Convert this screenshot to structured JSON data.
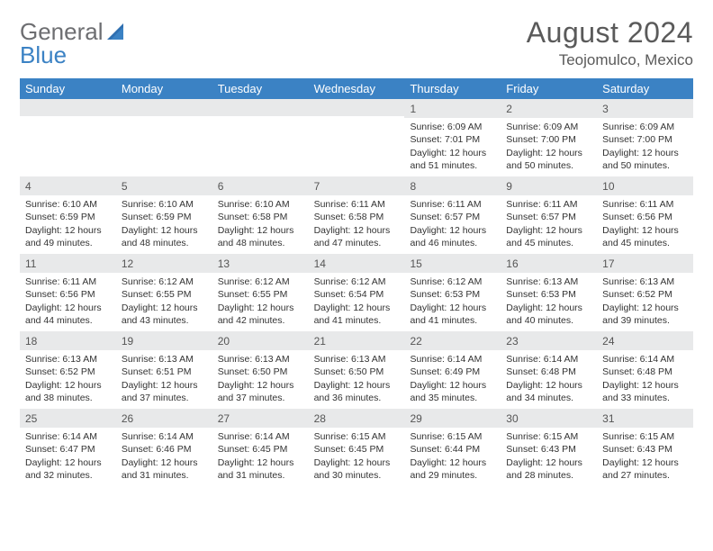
{
  "logo": {
    "line1": "General",
    "line2": "Blue"
  },
  "title": "August 2024",
  "location": "Teojomulco, Mexico",
  "colors": {
    "header_bg": "#3b82c4",
    "header_text": "#ffffff",
    "daynum_bg": "#e8e9ea",
    "body_text": "#333333",
    "title_text": "#5a5a5a",
    "logo_gray": "#6d6e71",
    "logo_blue": "#3b82c4"
  },
  "day_names": [
    "Sunday",
    "Monday",
    "Tuesday",
    "Wednesday",
    "Thursday",
    "Friday",
    "Saturday"
  ],
  "weeks": [
    [
      {
        "n": "",
        "sr": "",
        "ss": "",
        "dl": ""
      },
      {
        "n": "",
        "sr": "",
        "ss": "",
        "dl": ""
      },
      {
        "n": "",
        "sr": "",
        "ss": "",
        "dl": ""
      },
      {
        "n": "",
        "sr": "",
        "ss": "",
        "dl": ""
      },
      {
        "n": "1",
        "sr": "Sunrise: 6:09 AM",
        "ss": "Sunset: 7:01 PM",
        "dl": "Daylight: 12 hours and 51 minutes."
      },
      {
        "n": "2",
        "sr": "Sunrise: 6:09 AM",
        "ss": "Sunset: 7:00 PM",
        "dl": "Daylight: 12 hours and 50 minutes."
      },
      {
        "n": "3",
        "sr": "Sunrise: 6:09 AM",
        "ss": "Sunset: 7:00 PM",
        "dl": "Daylight: 12 hours and 50 minutes."
      }
    ],
    [
      {
        "n": "4",
        "sr": "Sunrise: 6:10 AM",
        "ss": "Sunset: 6:59 PM",
        "dl": "Daylight: 12 hours and 49 minutes."
      },
      {
        "n": "5",
        "sr": "Sunrise: 6:10 AM",
        "ss": "Sunset: 6:59 PM",
        "dl": "Daylight: 12 hours and 48 minutes."
      },
      {
        "n": "6",
        "sr": "Sunrise: 6:10 AM",
        "ss": "Sunset: 6:58 PM",
        "dl": "Daylight: 12 hours and 48 minutes."
      },
      {
        "n": "7",
        "sr": "Sunrise: 6:11 AM",
        "ss": "Sunset: 6:58 PM",
        "dl": "Daylight: 12 hours and 47 minutes."
      },
      {
        "n": "8",
        "sr": "Sunrise: 6:11 AM",
        "ss": "Sunset: 6:57 PM",
        "dl": "Daylight: 12 hours and 46 minutes."
      },
      {
        "n": "9",
        "sr": "Sunrise: 6:11 AM",
        "ss": "Sunset: 6:57 PM",
        "dl": "Daylight: 12 hours and 45 minutes."
      },
      {
        "n": "10",
        "sr": "Sunrise: 6:11 AM",
        "ss": "Sunset: 6:56 PM",
        "dl": "Daylight: 12 hours and 45 minutes."
      }
    ],
    [
      {
        "n": "11",
        "sr": "Sunrise: 6:11 AM",
        "ss": "Sunset: 6:56 PM",
        "dl": "Daylight: 12 hours and 44 minutes."
      },
      {
        "n": "12",
        "sr": "Sunrise: 6:12 AM",
        "ss": "Sunset: 6:55 PM",
        "dl": "Daylight: 12 hours and 43 minutes."
      },
      {
        "n": "13",
        "sr": "Sunrise: 6:12 AM",
        "ss": "Sunset: 6:55 PM",
        "dl": "Daylight: 12 hours and 42 minutes."
      },
      {
        "n": "14",
        "sr": "Sunrise: 6:12 AM",
        "ss": "Sunset: 6:54 PM",
        "dl": "Daylight: 12 hours and 41 minutes."
      },
      {
        "n": "15",
        "sr": "Sunrise: 6:12 AM",
        "ss": "Sunset: 6:53 PM",
        "dl": "Daylight: 12 hours and 41 minutes."
      },
      {
        "n": "16",
        "sr": "Sunrise: 6:13 AM",
        "ss": "Sunset: 6:53 PM",
        "dl": "Daylight: 12 hours and 40 minutes."
      },
      {
        "n": "17",
        "sr": "Sunrise: 6:13 AM",
        "ss": "Sunset: 6:52 PM",
        "dl": "Daylight: 12 hours and 39 minutes."
      }
    ],
    [
      {
        "n": "18",
        "sr": "Sunrise: 6:13 AM",
        "ss": "Sunset: 6:52 PM",
        "dl": "Daylight: 12 hours and 38 minutes."
      },
      {
        "n": "19",
        "sr": "Sunrise: 6:13 AM",
        "ss": "Sunset: 6:51 PM",
        "dl": "Daylight: 12 hours and 37 minutes."
      },
      {
        "n": "20",
        "sr": "Sunrise: 6:13 AM",
        "ss": "Sunset: 6:50 PM",
        "dl": "Daylight: 12 hours and 37 minutes."
      },
      {
        "n": "21",
        "sr": "Sunrise: 6:13 AM",
        "ss": "Sunset: 6:50 PM",
        "dl": "Daylight: 12 hours and 36 minutes."
      },
      {
        "n": "22",
        "sr": "Sunrise: 6:14 AM",
        "ss": "Sunset: 6:49 PM",
        "dl": "Daylight: 12 hours and 35 minutes."
      },
      {
        "n": "23",
        "sr": "Sunrise: 6:14 AM",
        "ss": "Sunset: 6:48 PM",
        "dl": "Daylight: 12 hours and 34 minutes."
      },
      {
        "n": "24",
        "sr": "Sunrise: 6:14 AM",
        "ss": "Sunset: 6:48 PM",
        "dl": "Daylight: 12 hours and 33 minutes."
      }
    ],
    [
      {
        "n": "25",
        "sr": "Sunrise: 6:14 AM",
        "ss": "Sunset: 6:47 PM",
        "dl": "Daylight: 12 hours and 32 minutes."
      },
      {
        "n": "26",
        "sr": "Sunrise: 6:14 AM",
        "ss": "Sunset: 6:46 PM",
        "dl": "Daylight: 12 hours and 31 minutes."
      },
      {
        "n": "27",
        "sr": "Sunrise: 6:14 AM",
        "ss": "Sunset: 6:45 PM",
        "dl": "Daylight: 12 hours and 31 minutes."
      },
      {
        "n": "28",
        "sr": "Sunrise: 6:15 AM",
        "ss": "Sunset: 6:45 PM",
        "dl": "Daylight: 12 hours and 30 minutes."
      },
      {
        "n": "29",
        "sr": "Sunrise: 6:15 AM",
        "ss": "Sunset: 6:44 PM",
        "dl": "Daylight: 12 hours and 29 minutes."
      },
      {
        "n": "30",
        "sr": "Sunrise: 6:15 AM",
        "ss": "Sunset: 6:43 PM",
        "dl": "Daylight: 12 hours and 28 minutes."
      },
      {
        "n": "31",
        "sr": "Sunrise: 6:15 AM",
        "ss": "Sunset: 6:43 PM",
        "dl": "Daylight: 12 hours and 27 minutes."
      }
    ]
  ]
}
